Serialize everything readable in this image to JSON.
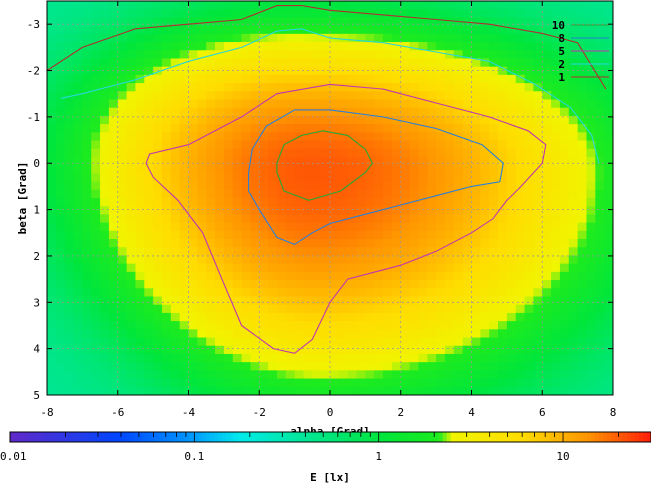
{
  "chart_data": {
    "type": "heatmap",
    "title": "",
    "xlabel": "alpha [Grad]",
    "ylabel": "beta [Grad]",
    "xlim": [
      -8,
      8
    ],
    "ylim": [
      5,
      -3.5
    ],
    "x_ticks": [
      -8,
      -6,
      -4,
      -2,
      0,
      2,
      4,
      6,
      8
    ],
    "x_tick_labels": [
      "-8",
      "-6",
      "-4",
      "-2",
      "0",
      "2",
      "4",
      "6",
      "8"
    ],
    "y_ticks": [
      -3,
      -2,
      -1,
      0,
      1,
      2,
      3,
      4,
      5
    ],
    "y_tick_labels": [
      "-3",
      "-2",
      "-1",
      "0",
      "1",
      "2",
      "3",
      "4",
      "5"
    ],
    "grid": true,
    "legend_position": "top-right",
    "peak": {
      "alpha": -0.5,
      "beta": 0.2,
      "value": 20
    },
    "contours": [
      {
        "name": "10",
        "level": 10,
        "color": "#2aa531",
        "points": [
          [
            -1.5,
            0.0
          ],
          [
            -1.3,
            -0.4
          ],
          [
            -0.8,
            -0.6
          ],
          [
            -0.2,
            -0.7
          ],
          [
            0.5,
            -0.6
          ],
          [
            1.0,
            -0.3
          ],
          [
            1.2,
            0.0
          ],
          [
            1.0,
            0.2
          ],
          [
            0.3,
            0.6
          ],
          [
            -0.6,
            0.8
          ],
          [
            -1.3,
            0.6
          ],
          [
            -1.5,
            0.2
          ]
        ]
      },
      {
        "name": "8",
        "level": 8,
        "color": "#2a7fd8",
        "points": [
          [
            -2.3,
            0.2
          ],
          [
            -2.2,
            -0.3
          ],
          [
            -1.8,
            -0.8
          ],
          [
            -1.0,
            -1.15
          ],
          [
            0.0,
            -1.15
          ],
          [
            1.5,
            -1.0
          ],
          [
            3.0,
            -0.75
          ],
          [
            4.3,
            -0.4
          ],
          [
            4.9,
            0.0
          ],
          [
            4.8,
            0.4
          ],
          [
            4.0,
            0.5
          ],
          [
            3.0,
            0.7
          ],
          [
            2.0,
            0.9
          ],
          [
            1.0,
            1.1
          ],
          [
            0.0,
            1.3
          ],
          [
            -0.5,
            1.5
          ],
          [
            -1.0,
            1.75
          ],
          [
            -1.5,
            1.6
          ],
          [
            -2.0,
            1.0
          ],
          [
            -2.3,
            0.6
          ]
        ]
      },
      {
        "name": "5",
        "level": 5,
        "color": "#c236b0",
        "points": [
          [
            -5.2,
            0.0
          ],
          [
            -5.1,
            -0.2
          ],
          [
            -4.0,
            -0.4
          ],
          [
            -2.5,
            -1.0
          ],
          [
            -1.5,
            -1.5
          ],
          [
            0.0,
            -1.7
          ],
          [
            1.5,
            -1.6
          ],
          [
            3.0,
            -1.3
          ],
          [
            4.5,
            -1.0
          ],
          [
            5.6,
            -0.7
          ],
          [
            6.1,
            -0.4
          ],
          [
            6.0,
            0.0
          ],
          [
            5.4,
            0.5
          ],
          [
            5.0,
            0.8
          ],
          [
            4.6,
            1.2
          ],
          [
            4.0,
            1.5
          ],
          [
            3.0,
            1.9
          ],
          [
            2.0,
            2.2
          ],
          [
            0.5,
            2.5
          ],
          [
            0.0,
            3.0
          ],
          [
            -0.5,
            3.8
          ],
          [
            -1.0,
            4.1
          ],
          [
            -1.6,
            4.0
          ],
          [
            -2.5,
            3.5
          ],
          [
            -3.0,
            2.6
          ],
          [
            -3.6,
            1.5
          ],
          [
            -4.3,
            0.8
          ],
          [
            -5.0,
            0.3
          ]
        ]
      },
      {
        "name": "2",
        "level": 2,
        "color": "#28d8d8",
        "points": [
          [
            -7.6,
            -1.4
          ],
          [
            -7.0,
            -1.5
          ],
          [
            -5.5,
            -1.8
          ],
          [
            -4.0,
            -2.2
          ],
          [
            -2.5,
            -2.5
          ],
          [
            -1.5,
            -2.85
          ],
          [
            -0.8,
            -2.9
          ],
          [
            0.0,
            -2.7
          ],
          [
            1.5,
            -2.6
          ],
          [
            3.0,
            -2.4
          ],
          [
            4.5,
            -2.2
          ],
          [
            5.8,
            -1.7
          ],
          [
            6.8,
            -1.2
          ],
          [
            7.4,
            -0.6
          ],
          [
            7.6,
            0.0
          ]
        ]
      },
      {
        "name": "1",
        "level": 1,
        "color": "#b03030",
        "points": [
          [
            -8.0,
            -2.0
          ],
          [
            -7.0,
            -2.5
          ],
          [
            -5.5,
            -2.9
          ],
          [
            -4.0,
            -3.0
          ],
          [
            -2.5,
            -3.1
          ],
          [
            -1.5,
            -3.4
          ],
          [
            -0.8,
            -3.4
          ],
          [
            0.0,
            -3.3
          ],
          [
            1.5,
            -3.2
          ],
          [
            3.0,
            -3.1
          ],
          [
            4.5,
            -3.0
          ],
          [
            6.0,
            -2.8
          ],
          [
            7.0,
            -2.6
          ],
          [
            7.8,
            -1.6
          ]
        ]
      }
    ],
    "colorbar": {
      "label": "E [lx]",
      "scale": "log",
      "range": [
        0.01,
        30
      ],
      "tick_labels": [
        "0.01",
        "0.1",
        "1",
        "10"
      ],
      "tick_values": [
        0.01,
        0.1,
        1,
        10
      ]
    }
  }
}
